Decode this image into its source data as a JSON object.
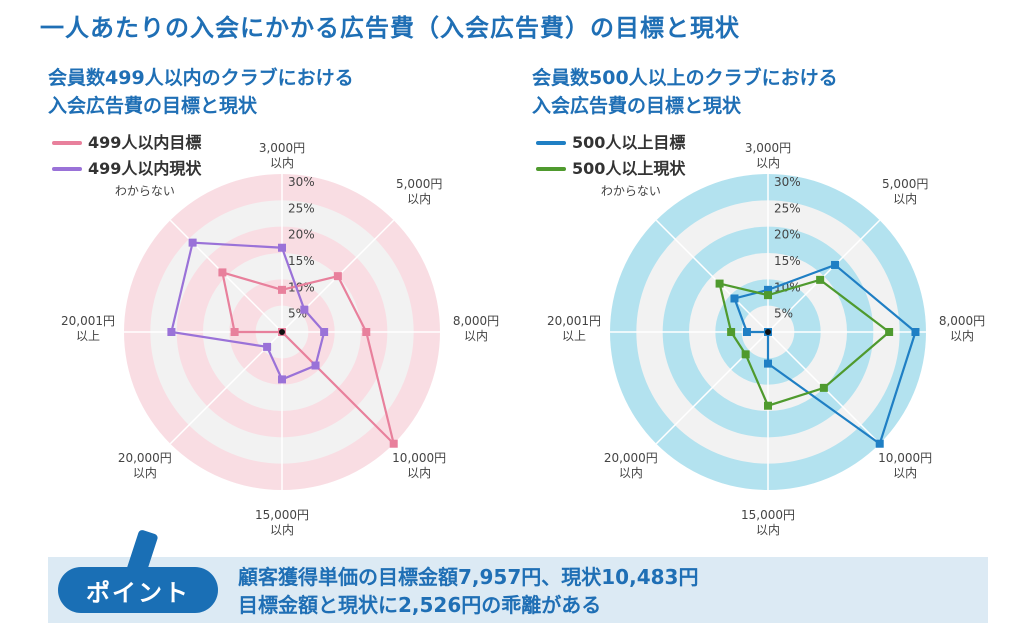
{
  "title": "一人あたりの入会にかかる広告費（入会広告費）の目標と現状",
  "point": {
    "badge": "ポイント",
    "lines": [
      "顧客獲得単価の目標金額7,957円、現状10,483円",
      "目標金額と現状に2,526円の乖離がある"
    ]
  },
  "colors": {
    "accent": "#1f6fb5",
    "left_bg": "#f9dde3",
    "right_bg": "#b3e2ef",
    "ring_light": "#f2f2f2"
  },
  "chart_data": [
    {
      "type": "radar",
      "title_lines": [
        "会員数499人以内のクラブにおける",
        "入会広告費の目標と現状"
      ],
      "categories": [
        [
          "3,000円",
          "以内"
        ],
        [
          "5,000円",
          "以内"
        ],
        [
          "8,000円",
          "以内"
        ],
        [
          "10,000円",
          "以内"
        ],
        [
          "15,000円",
          "以内"
        ],
        [
          "20,000円",
          "以内"
        ],
        [
          "20,001円",
          "以上"
        ],
        [
          "わからない"
        ]
      ],
      "ticks": [
        "5%",
        "10%",
        "15%",
        "20%",
        "25%",
        "30%"
      ],
      "range": [
        0,
        30
      ],
      "background": "#f9dde3",
      "series": [
        {
          "name": "499人以内目標",
          "color": "#e8809c",
          "values": [
            8,
            15,
            16,
            30,
            0,
            0,
            9,
            16
          ]
        },
        {
          "name": "499人以内現状",
          "color": "#9a72d8",
          "values": [
            16,
            6,
            8,
            9,
            9,
            4,
            21,
            24
          ]
        }
      ]
    },
    {
      "type": "radar",
      "title_lines": [
        "会員数500人以上のクラブにおける",
        "入会広告費の目標と現状"
      ],
      "categories": [
        [
          "3,000円",
          "以内"
        ],
        [
          "5,000円",
          "以内"
        ],
        [
          "8,000円",
          "以内"
        ],
        [
          "10,000円",
          "以内"
        ],
        [
          "15,000円",
          "以内"
        ],
        [
          "20,000円",
          "以内"
        ],
        [
          "20,001円",
          "以上"
        ],
        [
          "わからない"
        ]
      ],
      "ticks": [
        "5%",
        "10%",
        "15%",
        "20%",
        "25%",
        "30%"
      ],
      "range": [
        0,
        30
      ],
      "background": "#b3e2ef",
      "series": [
        {
          "name": "500人以上目標",
          "color": "#1f7fc4",
          "values": [
            8,
            18,
            28,
            30,
            6,
            0,
            4,
            9
          ]
        },
        {
          "name": "500人以上現状",
          "color": "#4f9a2e",
          "values": [
            7,
            14,
            23,
            15,
            14,
            6,
            7,
            13
          ]
        }
      ]
    }
  ]
}
